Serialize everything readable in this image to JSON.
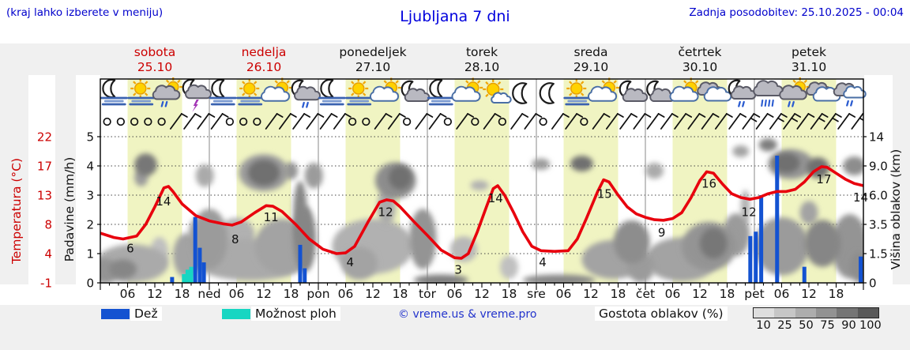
{
  "header": {
    "hint": "(kraj lahko izberete v meniju)",
    "title": "Ljubljana 7 dni",
    "updated": "Zadnja posodobitev: 25.10.2025 - 00:04"
  },
  "days": [
    {
      "name": "sobota",
      "date": "25.10",
      "highlight": true
    },
    {
      "name": "nedelja",
      "date": "26.10",
      "highlight": true
    },
    {
      "name": "ponedeljek",
      "date": "27.10",
      "highlight": false
    },
    {
      "name": "torek",
      "date": "28.10",
      "highlight": false
    },
    {
      "name": "sreda",
      "date": "29.10",
      "highlight": false
    },
    {
      "name": "četrtek",
      "date": "30.10",
      "highlight": false
    },
    {
      "name": "petek",
      "date": "31.10",
      "highlight": false
    }
  ],
  "axes": {
    "temperature_label": "Temperatura (°C)",
    "precipitation_label": "Padavine (mm/h)",
    "cloud_height_label": "Višina oblakov (km)"
  },
  "legend": {
    "rain_label": "Dež",
    "showers_label": "Možnost ploh",
    "copyright": "© vreme.us & vreme.pro",
    "cloud_density_label": "Gostota oblakov (%)",
    "cloud_scale": {
      "labels": [
        "10",
        "25",
        "50",
        "75",
        "90",
        "100"
      ],
      "colors": [
        "#dedede",
        "#c6c6c6",
        "#adadad",
        "#929292",
        "#757575",
        "#595959"
      ]
    }
  },
  "colors": {
    "rain": "#1352d1",
    "showers": "#17d6c2",
    "temperature_curve": "#e8000d",
    "accent_blue": "#0000cc",
    "accent_red": "#cc0000",
    "day_band": "#f0f4c2"
  },
  "chart_data": {
    "type": "meteogram",
    "x_unit": "hours from 25.10 00:00",
    "x_range": [
      0,
      168
    ],
    "daylight_hours": [
      6,
      18
    ],
    "xaxis": {
      "hour_labels": [
        "06",
        "12",
        "18"
      ],
      "day_abbr": [
        "ned",
        "pon",
        "tor",
        "sre",
        "čet",
        "pet"
      ]
    },
    "temperature": {
      "unit": "°C",
      "ticks": [
        -1,
        4,
        8,
        13,
        17,
        22
      ],
      "tick_labels": [
        "-1",
        "4",
        "8",
        "13",
        "17",
        "22"
      ],
      "points": [
        [
          0,
          6.8
        ],
        [
          3,
          6.2
        ],
        [
          5,
          6
        ],
        [
          8,
          6.4
        ],
        [
          10,
          8
        ],
        [
          12,
          11
        ],
        [
          14,
          14
        ],
        [
          15,
          14.2
        ],
        [
          16,
          13.5
        ],
        [
          18,
          11.5
        ],
        [
          21,
          9.5
        ],
        [
          24,
          8.6
        ],
        [
          27,
          8.1
        ],
        [
          29,
          7.9
        ],
        [
          31,
          8.4
        ],
        [
          34,
          10
        ],
        [
          36.5,
          11.2
        ],
        [
          38,
          11.1
        ],
        [
          40,
          10.2
        ],
        [
          43,
          8
        ],
        [
          46,
          6
        ],
        [
          49,
          4.6
        ],
        [
          52,
          4
        ],
        [
          54,
          4.1
        ],
        [
          56,
          5
        ],
        [
          59,
          8.5
        ],
        [
          61.5,
          11.8
        ],
        [
          63,
          12.2
        ],
        [
          64.5,
          12
        ],
        [
          66,
          11
        ],
        [
          69,
          8.5
        ],
        [
          72,
          6.5
        ],
        [
          75,
          4.5
        ],
        [
          78,
          3.3
        ],
        [
          79.5,
          3.2
        ],
        [
          81,
          4
        ],
        [
          83,
          7
        ],
        [
          85,
          11
        ],
        [
          86.5,
          13.9
        ],
        [
          87.5,
          14.3
        ],
        [
          89,
          13
        ],
        [
          91,
          10
        ],
        [
          93,
          7
        ],
        [
          95,
          5
        ],
        [
          97,
          4.4
        ],
        [
          100,
          4.3
        ],
        [
          103,
          4.4
        ],
        [
          105,
          6
        ],
        [
          107,
          9
        ],
        [
          109.5,
          13.5
        ],
        [
          110.8,
          15.1
        ],
        [
          112,
          14.8
        ],
        [
          114,
          13
        ],
        [
          116,
          11
        ],
        [
          118,
          9.8
        ],
        [
          120,
          9.2
        ],
        [
          122,
          8.8
        ],
        [
          124,
          8.7
        ],
        [
          126,
          9
        ],
        [
          128,
          10
        ],
        [
          130,
          12.5
        ],
        [
          132,
          15
        ],
        [
          133.5,
          16.2
        ],
        [
          135,
          16
        ],
        [
          137,
          14.5
        ],
        [
          139,
          13.2
        ],
        [
          141,
          12.6
        ],
        [
          143,
          12.3
        ],
        [
          145,
          12.6
        ],
        [
          147,
          13.2
        ],
        [
          149,
          13.5
        ],
        [
          151,
          13.5
        ],
        [
          153,
          13.8
        ],
        [
          155,
          14.8
        ],
        [
          157,
          16.2
        ],
        [
          158.8,
          16.9
        ],
        [
          160,
          16.8
        ],
        [
          162,
          16
        ],
        [
          164,
          15.2
        ],
        [
          166,
          14.6
        ],
        [
          168,
          14.3
        ]
      ],
      "labels": [
        [
          6.6,
          6,
          12
        ],
        [
          13.9,
          14,
          17
        ],
        [
          29.7,
          8,
          19
        ],
        [
          37.6,
          11,
          13
        ],
        [
          55,
          4,
          11
        ],
        [
          62.8,
          12,
          14
        ],
        [
          78.8,
          3,
          13
        ],
        [
          87,
          14,
          13
        ],
        [
          97.4,
          4,
          11
        ],
        [
          111,
          15,
          17
        ],
        [
          123.6,
          9,
          18
        ],
        [
          134,
          16,
          13
        ],
        [
          142.8,
          12,
          14
        ],
        [
          159.3,
          17,
          17
        ],
        [
          167.4,
          14,
          12
        ]
      ]
    },
    "precipitation": {
      "unit": "mm/h",
      "ticks": [
        0,
        1,
        2,
        3,
        4,
        5
      ],
      "tick_labels": [
        "0",
        "1",
        "2",
        "3",
        "4",
        "5"
      ],
      "rain": [
        [
          15.8,
          0.2
        ],
        [
          20.9,
          2.25
        ],
        [
          21.9,
          1.2
        ],
        [
          22.8,
          0.7
        ],
        [
          44,
          1.3
        ],
        [
          45,
          0.5
        ],
        [
          143.1,
          1.6
        ],
        [
          144.3,
          1.75
        ],
        [
          145.5,
          3.0
        ],
        [
          149,
          4.35
        ],
        [
          155,
          0.55
        ],
        [
          167.4,
          0.9
        ]
      ],
      "showers": [
        [
          18.4,
          0.3
        ],
        [
          19.2,
          0.45
        ],
        [
          20,
          0.55
        ]
      ]
    },
    "cloud_height": {
      "unit": "km",
      "tick_labels": [
        "0",
        "1.5",
        "3.5",
        "6.0",
        "9.0",
        "14"
      ],
      "tick_values": [
        0,
        1.5,
        3.5,
        6,
        9,
        14
      ],
      "blobs": [
        [
          1,
          0.6,
          3,
          0.7,
          60
        ],
        [
          7,
          1,
          8,
          1.1,
          45
        ],
        [
          5,
          0.7,
          3,
          0.5,
          70
        ],
        [
          10,
          9.2,
          2.5,
          1.5,
          80
        ],
        [
          9,
          7.8,
          1.5,
          0.9,
          55
        ],
        [
          13,
          1.6,
          2,
          0.9,
          30
        ],
        [
          19,
          1.4,
          3,
          1.3,
          50
        ],
        [
          21,
          3,
          1.5,
          0.9,
          40
        ],
        [
          24,
          2.5,
          4,
          2,
          55
        ],
        [
          23,
          8,
          2,
          1.2,
          45
        ],
        [
          33,
          1.2,
          13,
          1.2,
          45
        ],
        [
          30,
          2.8,
          4,
          1.2,
          40
        ],
        [
          36,
          8.3,
          5.5,
          2.2,
          55
        ],
        [
          36,
          8.3,
          3.5,
          1.5,
          85
        ],
        [
          40,
          2,
          6,
          1.7,
          50
        ],
        [
          42,
          8.5,
          1.5,
          1,
          60
        ],
        [
          44,
          4.5,
          1.5,
          2.6,
          70
        ],
        [
          45,
          2.5,
          2.5,
          2.2,
          70
        ],
        [
          47,
          8,
          2,
          1.4,
          55
        ],
        [
          57,
          1,
          4,
          0.9,
          50
        ],
        [
          60,
          2,
          9,
          1.7,
          40
        ],
        [
          63,
          5,
          2,
          1.6,
          45
        ],
        [
          65,
          7.5,
          4.5,
          1.9,
          65
        ],
        [
          66,
          7.8,
          2.5,
          1.2,
          85
        ],
        [
          71,
          2.5,
          3,
          2,
          60
        ],
        [
          75,
          0.15,
          6,
          0.4,
          75
        ],
        [
          80,
          1.8,
          3,
          0.8,
          35
        ],
        [
          83.5,
          7,
          2,
          0.5,
          40
        ],
        [
          90,
          0.8,
          2,
          0.6,
          30
        ],
        [
          97,
          9.3,
          2,
          0.8,
          55
        ],
        [
          101,
          0.15,
          8,
          0.4,
          70
        ],
        [
          106,
          9.4,
          2.5,
          1.1,
          85
        ],
        [
          113,
          1.2,
          7,
          1.1,
          50
        ],
        [
          117,
          2.3,
          4,
          1.4,
          65
        ],
        [
          119,
          0.8,
          3,
          0.8,
          55
        ],
        [
          122,
          8.5,
          2,
          0.9,
          45
        ],
        [
          128,
          1.2,
          8,
          1.3,
          50
        ],
        [
          134,
          2,
          6,
          1.5,
          60
        ],
        [
          135,
          2.2,
          3,
          1,
          80
        ],
        [
          140,
          2.8,
          3,
          1.5,
          55
        ],
        [
          141,
          11.5,
          1.8,
          1,
          50
        ],
        [
          142,
          5,
          1,
          1.5,
          40
        ],
        [
          147,
          12.6,
          2,
          1.1,
          75
        ],
        [
          152,
          9.3,
          5,
          2,
          60
        ],
        [
          151,
          9.5,
          3,
          1.4,
          85
        ],
        [
          158,
          8.8,
          2.5,
          1.3,
          85
        ],
        [
          166,
          9,
          2.5,
          1.2,
          65
        ],
        [
          150,
          2,
          6,
          1.8,
          55
        ],
        [
          159,
          2.2,
          4,
          1.5,
          70
        ],
        [
          165,
          2,
          4,
          2,
          60
        ],
        [
          156,
          4.5,
          2,
          1,
          50
        ],
        [
          167,
          0.8,
          2,
          0.8,
          65
        ]
      ]
    },
    "weather_icons": [
      [
        "moon-fog",
        "sun-fog",
        "sun-rain",
        "moon-storm"
      ],
      [
        "moon-fog",
        "sun-fog",
        "sun-cloud",
        "moon-rain"
      ],
      [
        "moon-fog",
        "sun-fog",
        "sun-cloud",
        "moon-cloud"
      ],
      [
        "moon-fog",
        "sun-cloud",
        "sun-cloud-small",
        "moon-clear"
      ],
      [
        "moon-clear",
        "sun-fog",
        "sun-cloud",
        "moon-cloud"
      ],
      [
        "moon-cloud",
        "sun-cloud",
        "clouds",
        "moon-drizzle"
      ],
      [
        "rain-heavy",
        "sun-rain",
        "clouds",
        "cloud-drizzle"
      ]
    ],
    "wind": [
      [
        0,
        0,
        0,
        0,
        0,
        1,
        1,
        1
      ],
      [
        1,
        0,
        0,
        0,
        1,
        1,
        1,
        1
      ],
      [
        1,
        1,
        0,
        0,
        1,
        1,
        0,
        1
      ],
      [
        1,
        0,
        1,
        0,
        1,
        0,
        1,
        1
      ],
      [
        0,
        1,
        1,
        0,
        1,
        1,
        1,
        1
      ],
      [
        1,
        1,
        1,
        1,
        1,
        1,
        1,
        2
      ],
      [
        1,
        2,
        2,
        1,
        2,
        2,
        1,
        2
      ]
    ]
  }
}
